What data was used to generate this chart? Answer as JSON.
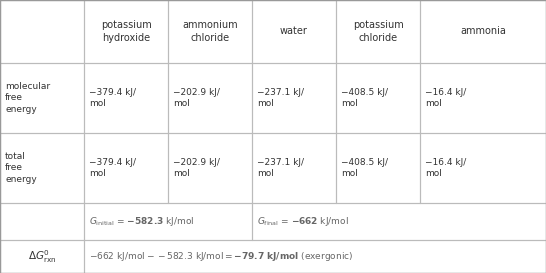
{
  "col_headers": [
    "potassium\nhydroxide",
    "ammonium\nchloride",
    "water",
    "potassium\nchloride",
    "ammonia"
  ],
  "mol_free_energy": [
    "−379.4 kJ/\nmol",
    "−202.9 kJ/\nmol",
    "−237.1 kJ/\nmol",
    "−408.5 kJ/\nmol",
    "−16.4 kJ/\nmol"
  ],
  "total_free_energy": [
    "−379.4 kJ/\nmol",
    "−202.9 kJ/\nmol",
    "−237.1 kJ/\nmol",
    "−408.5 kJ/\nmol",
    "−16.4 kJ/\nmol"
  ],
  "background_color": "#ffffff",
  "cell_border_color": "#bbbbbb",
  "text_color_dark": "#333333",
  "text_color_gray": "#666666"
}
